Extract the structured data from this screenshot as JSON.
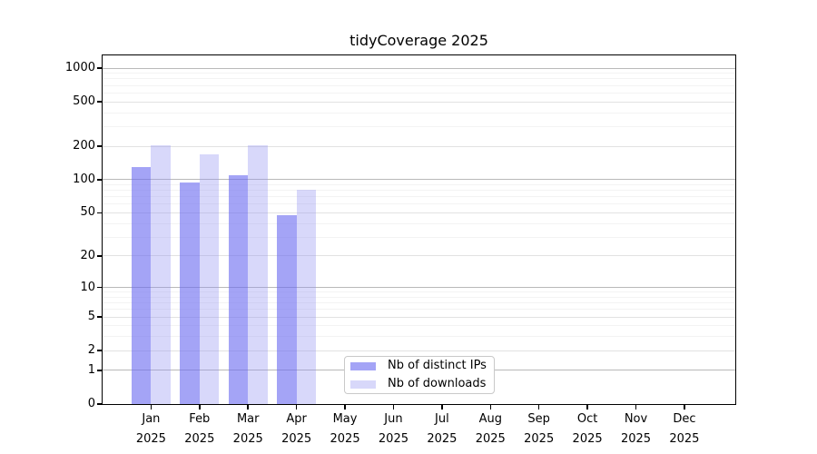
{
  "chart_data": {
    "type": "bar",
    "title": "tidyCoverage 2025",
    "scale": "log1p",
    "grid": true,
    "ylim": [
      0,
      1000
    ],
    "yticks": [
      0,
      1,
      2,
      5,
      10,
      20,
      50,
      100,
      200,
      500,
      1000
    ],
    "categories": [
      "Jan",
      "Feb",
      "Mar",
      "Apr",
      "May",
      "Jun",
      "Jul",
      "Aug",
      "Sep",
      "Oct",
      "Nov",
      "Dec"
    ],
    "year_label": "2025",
    "series": [
      {
        "name": "Nb of distinct IPs",
        "fill": "rgba(108,108,240,0.62)",
        "values": [
          130,
          95,
          110,
          48,
          0,
          0,
          0,
          0,
          0,
          0,
          0,
          0
        ]
      },
      {
        "name": "Nb of downloads",
        "fill": "rgba(148,148,242,0.36)",
        "values": [
          205,
          170,
          205,
          81,
          0,
          0,
          0,
          0,
          0,
          0,
          0,
          0
        ]
      }
    ],
    "legend_position": "inside-bottom-center",
    "grid_colors": {
      "decade": "#b9b9b9",
      "labeled": "#e2e2e2",
      "minor": "#f3f3f3"
    }
  }
}
